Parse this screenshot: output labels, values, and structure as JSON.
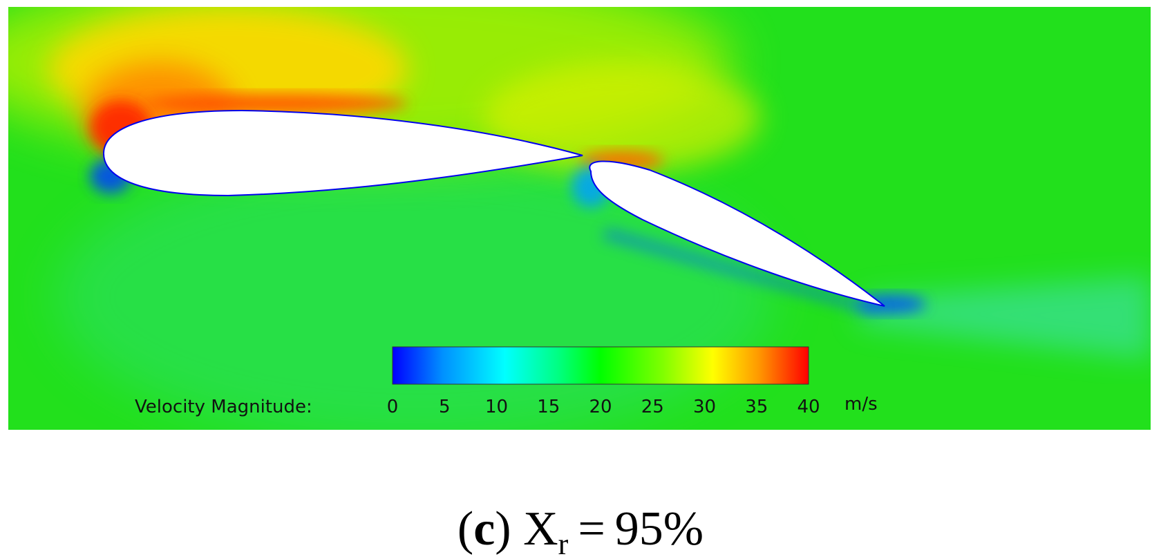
{
  "figure": {
    "panel_letter": "c",
    "caption_symbol": "X",
    "caption_subscript": "r",
    "caption_equals": "=",
    "caption_value": "95%"
  },
  "colorbar": {
    "title": "Velocity Magnitude:",
    "unit": "m/s",
    "min": 0,
    "max": 40,
    "ticks": [
      "0",
      "5",
      "10",
      "15",
      "20",
      "25",
      "30",
      "35",
      "40"
    ],
    "colormap": [
      "#0000ff",
      "#0090ff",
      "#00ffff",
      "#00ff80",
      "#00ff00",
      "#80ff00",
      "#ffff00",
      "#ff9900",
      "#ff0000"
    ]
  },
  "colors": {
    "freestream": "#22e01c",
    "suction_peak": "#ff2a00",
    "stagnation": "#0033ff",
    "airfoil": "#ffffff"
  }
}
